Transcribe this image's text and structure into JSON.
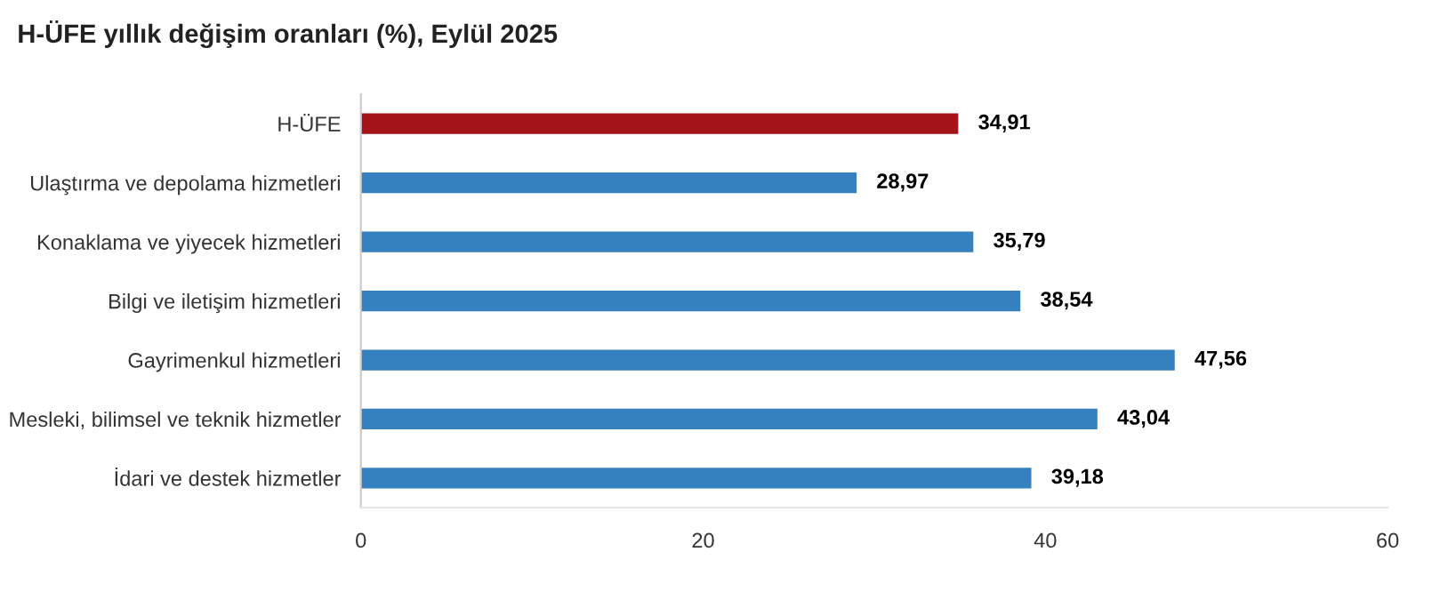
{
  "chart_data": {
    "type": "bar",
    "orientation": "horizontal",
    "title": "H-ÜFE yıllık değişim oranları (%), Eylül 2025",
    "categories": [
      "H-ÜFE",
      "Ulaştırma ve depolama hizmetleri",
      "Konaklama ve yiyecek hizmetleri",
      "Bilgi ve iletişim hizmetleri",
      "Gayrimenkul hizmetleri",
      "Mesleki, bilimsel ve teknik hizmetler",
      "İdari ve destek hizmetler"
    ],
    "values": [
      34.91,
      28.97,
      35.79,
      38.54,
      47.56,
      43.04,
      39.18
    ],
    "value_labels": [
      "34,91",
      "28,97",
      "35,79",
      "38,54",
      "47,56",
      "43,04",
      "39,18"
    ],
    "colors": [
      "#a6141b",
      "#3580bf",
      "#3580bf",
      "#3580bf",
      "#3580bf",
      "#3580bf",
      "#3580bf"
    ],
    "xlim": [
      0,
      60
    ],
    "xticks": [
      0,
      20,
      40,
      60
    ],
    "grid": false,
    "legend": false
  }
}
